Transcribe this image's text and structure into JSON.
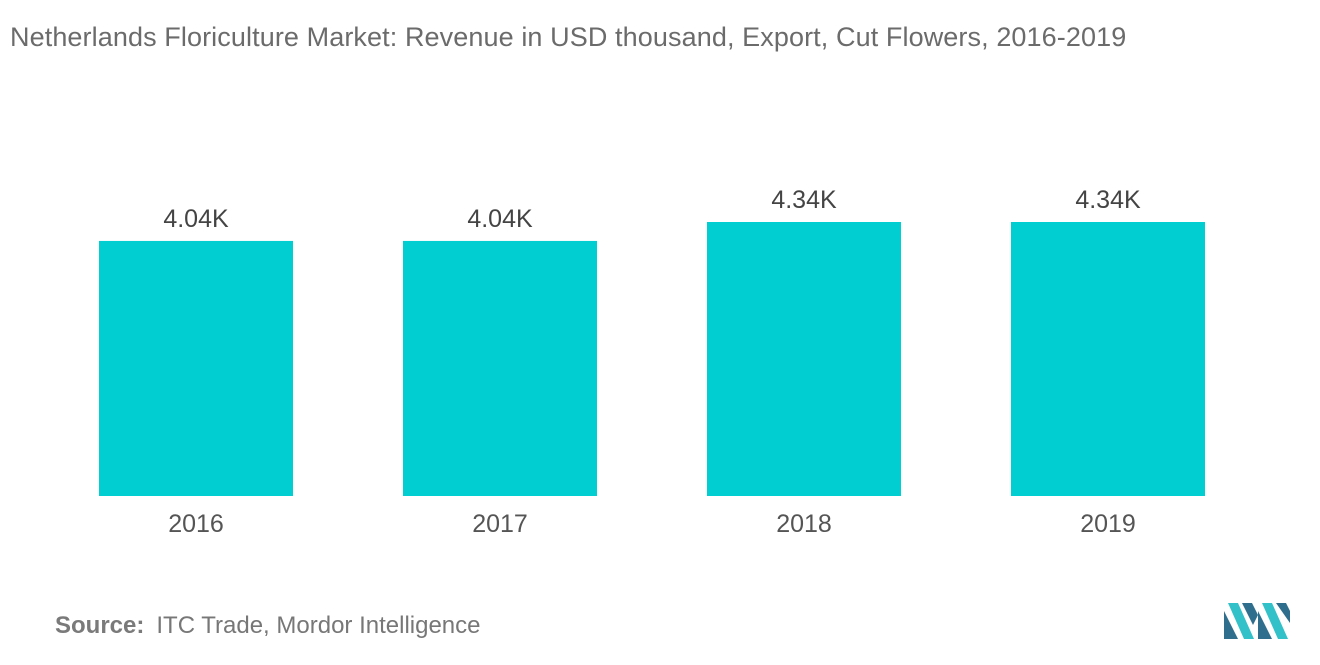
{
  "header": {
    "title": "Netherlands Floriculture Market: Revenue in USD thousand, Export, Cut Flowers, 2016-2019"
  },
  "chart_data": {
    "type": "bar",
    "title": "Netherlands Floriculture Market: Revenue in USD thousand, Export, Cut Flowers, 2016-2019",
    "categories": [
      "2016",
      "2017",
      "2018",
      "2019"
    ],
    "values": [
      4040,
      4040,
      4340,
      4340
    ],
    "data_labels": [
      "4.04K",
      "4.04K",
      "4.34K",
      "4.34K"
    ],
    "xlabel": "",
    "ylabel": "",
    "ylim": [
      0,
      4340
    ],
    "grid": false,
    "legend": "none",
    "bar_color": "#00CED1"
  },
  "footer": {
    "source_key": "Source:",
    "source_value": "ITC Trade, Mordor Intelligence"
  },
  "colors": {
    "bar": "#00CED1",
    "logo_dark": "#2F6E8C",
    "logo_light": "#33C1C9"
  }
}
